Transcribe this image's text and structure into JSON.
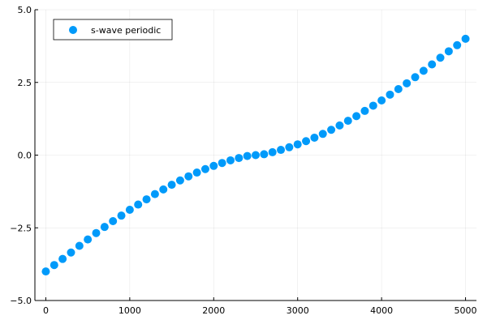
{
  "chart_data": {
    "type": "scatter",
    "title": "",
    "xlabel": "",
    "ylabel": "",
    "xlim": [
      -130,
      5130
    ],
    "ylim": [
      -5.0,
      5.0
    ],
    "x_ticks": [
      0,
      1000,
      2000,
      3000,
      4000,
      5000
    ],
    "y_ticks": [
      -5.0,
      -2.5,
      0.0,
      2.5,
      5.0
    ],
    "x_tick_labels": [
      "0",
      "1000",
      "2000",
      "3000",
      "4000",
      "5000"
    ],
    "y_tick_labels": [
      "−5.0",
      "−2.5",
      "0.0",
      "2.5",
      "5.0"
    ],
    "grid": true,
    "legend_position": "top-left",
    "series": [
      {
        "name": "s-wave periodic",
        "color": "#009AFA",
        "x": [
          0,
          100,
          200,
          300,
          400,
          500,
          600,
          700,
          800,
          900,
          1000,
          1100,
          1200,
          1300,
          1400,
          1500,
          1600,
          1700,
          1800,
          1900,
          2000,
          2100,
          2200,
          2300,
          2400,
          2500,
          2600,
          2700,
          2800,
          2900,
          3000,
          3100,
          3200,
          3300,
          3400,
          3500,
          3600,
          3700,
          3800,
          3900,
          4000,
          4100,
          4200,
          4300,
          4400,
          4500,
          4600,
          4700,
          4800,
          4900,
          5000
        ],
        "y": [
          -4.0,
          -3.78,
          -3.57,
          -3.35,
          -3.12,
          -2.9,
          -2.68,
          -2.47,
          -2.27,
          -2.08,
          -1.88,
          -1.7,
          -1.52,
          -1.34,
          -1.18,
          -1.02,
          -0.87,
          -0.73,
          -0.6,
          -0.48,
          -0.37,
          -0.27,
          -0.18,
          -0.1,
          -0.03,
          0.0,
          0.03,
          0.1,
          0.18,
          0.27,
          0.37,
          0.48,
          0.6,
          0.73,
          0.87,
          1.02,
          1.18,
          1.34,
          1.52,
          1.7,
          1.88,
          2.08,
          2.27,
          2.47,
          2.68,
          2.9,
          3.12,
          3.35,
          3.57,
          3.78,
          4.0
        ]
      }
    ]
  }
}
